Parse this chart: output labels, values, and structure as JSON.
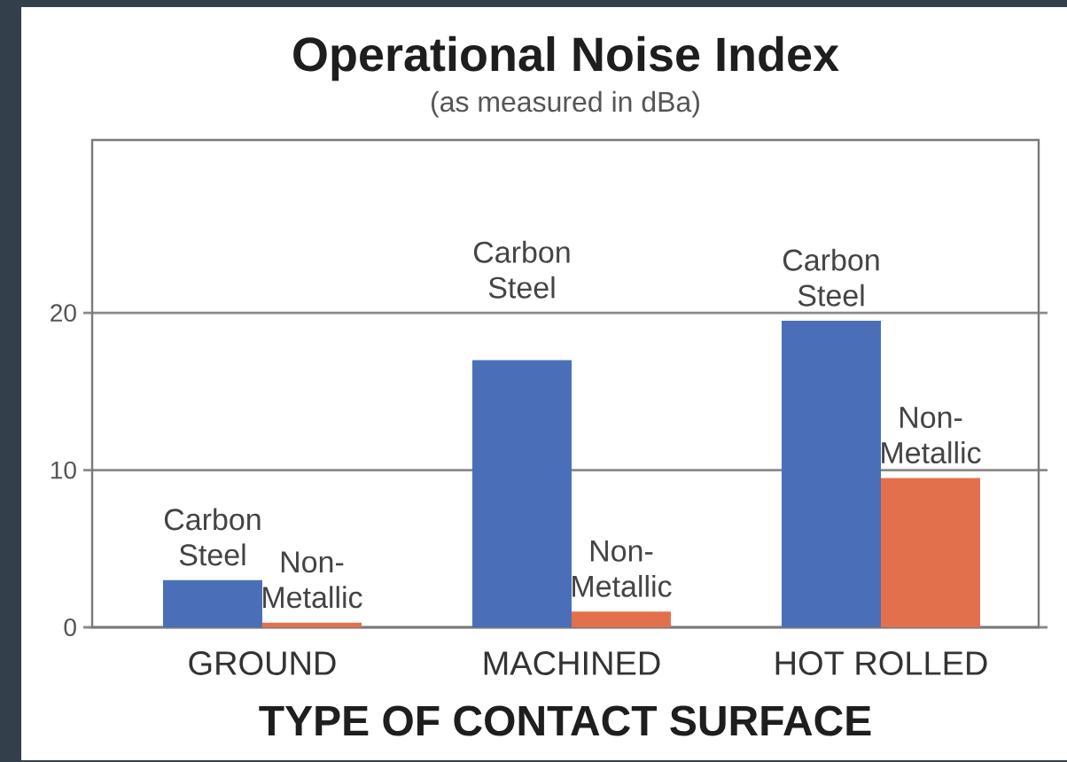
{
  "chart_data": {
    "type": "bar",
    "title": "Operational Noise Index",
    "subtitle": "(as measured in dBa)",
    "xlabel": "TYPE OF CONTACT SURFACE",
    "categories": [
      "GROUND",
      "MACHINED",
      "HOT ROLLED"
    ],
    "series": [
      {
        "name": "Carbon Steel",
        "color": "#4a6fb8",
        "values": [
          3,
          17,
          19.5
        ]
      },
      {
        "name": "Non-Metallic",
        "color": "#e3704c",
        "values": [
          0.3,
          1,
          9.5
        ]
      }
    ],
    "ylim": [
      0,
      31
    ],
    "yticks": [
      0,
      10,
      20
    ],
    "grid": "y"
  }
}
